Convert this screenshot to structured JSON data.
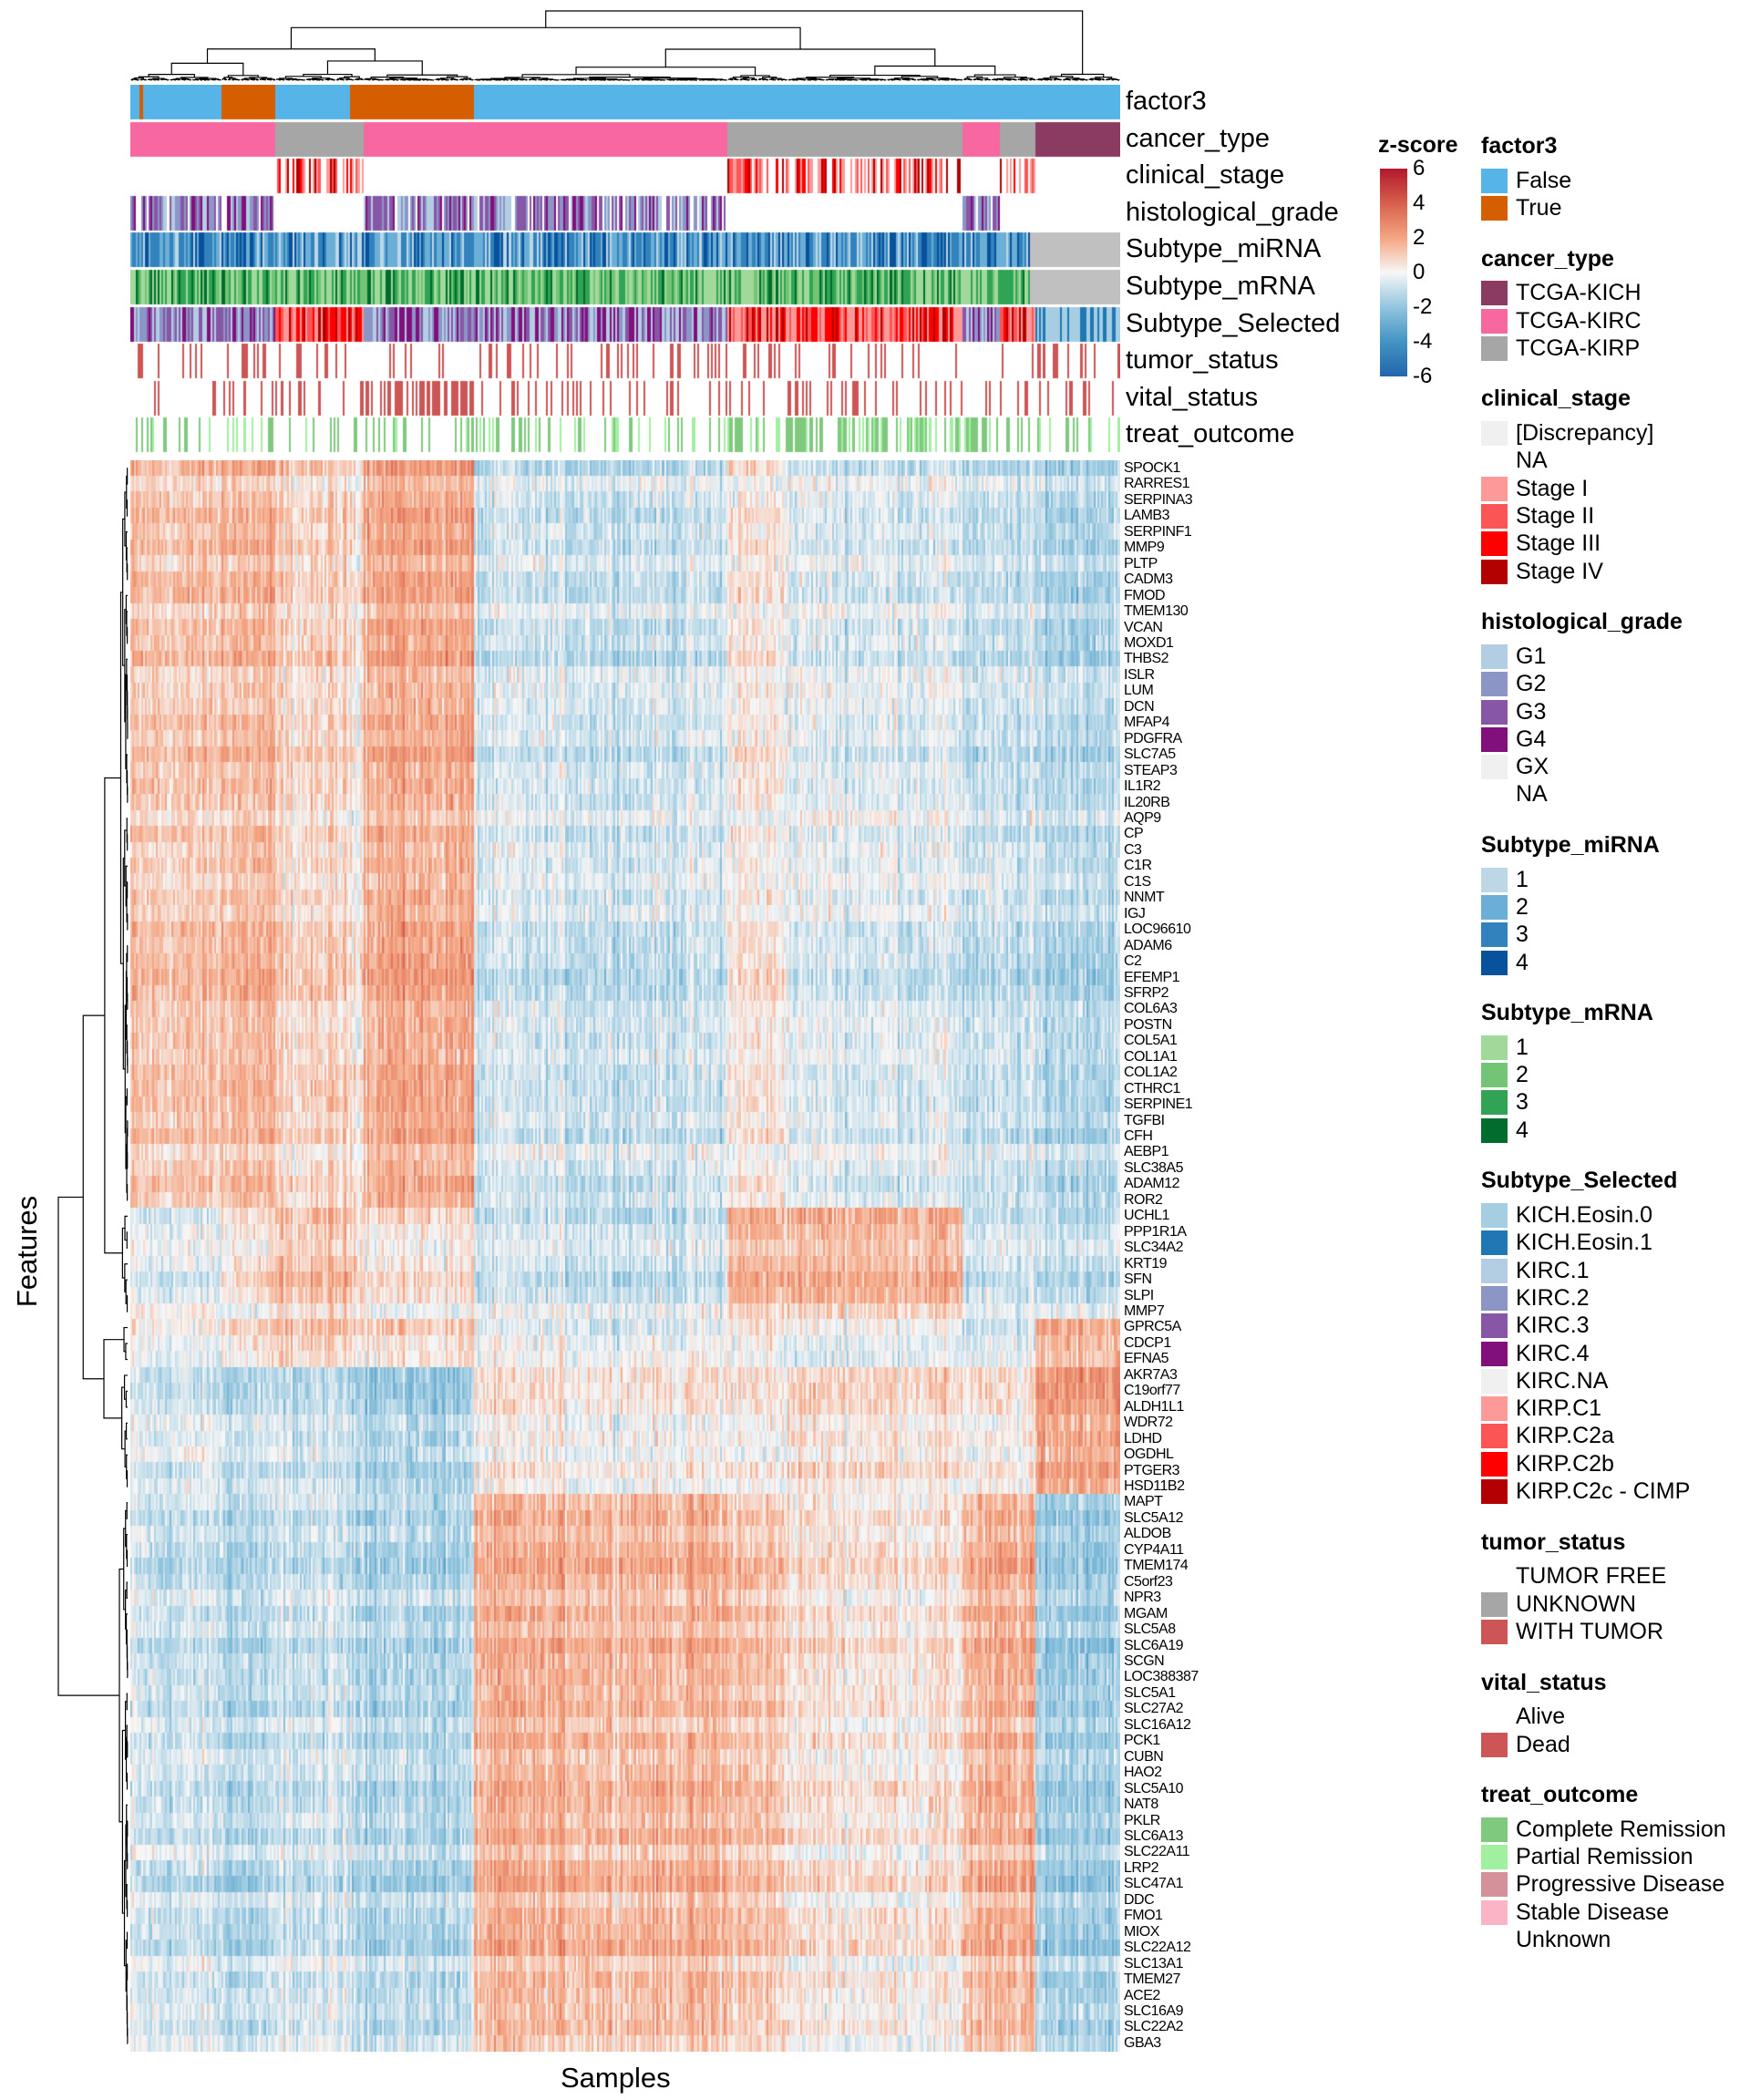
{
  "chart_data": {
    "type": "heatmap",
    "title": "",
    "xlabel": "Samples",
    "ylabel": "Features",
    "color_scale": {
      "title": "z-score",
      "range": [
        -6,
        6
      ],
      "ticks": [
        "6",
        "4",
        "2",
        "0",
        "-2",
        "-4",
        "-6"
      ],
      "colors": [
        "#2166ac",
        "#4393c3",
        "#92c5de",
        "#f7f7f7",
        "#f4a582",
        "#d6604d",
        "#b2182b"
      ]
    },
    "row_dendrogram": true,
    "column_dendrogram": true,
    "annotation_tracks": [
      "factor3",
      "cancer_type",
      "clinical_stage",
      "histological_grade",
      "Subtype_miRNA",
      "Subtype_mRNA",
      "Subtype_Selected",
      "tumor_status",
      "vital_status",
      "treat_outcome"
    ],
    "rows": [
      "SPOCK1",
      "RARRES1",
      "SERPINA3",
      "LAMB3",
      "SERPINF1",
      "MMP9",
      "PLTP",
      "CADM3",
      "FMOD",
      "TMEM130",
      "VCAN",
      "MOXD1",
      "THBS2",
      "ISLR",
      "LUM",
      "DCN",
      "MFAP4",
      "PDGFRA",
      "SLC7A5",
      "STEAP3",
      "IL1R2",
      "IL20RB",
      "AQP9",
      "CP",
      "C3",
      "C1R",
      "C1S",
      "NNMT",
      "IGJ",
      "LOC96610",
      "ADAM6",
      "C2",
      "EFEMP1",
      "SFRP2",
      "COL6A3",
      "POSTN",
      "COL5A1",
      "COL1A1",
      "COL1A2",
      "CTHRC1",
      "SERPINE1",
      "TGFBI",
      "CFH",
      "AEBP1",
      "SLC38A5",
      "ADAM12",
      "ROR2",
      "UCHL1",
      "PPP1R1A",
      "SLC34A2",
      "KRT19",
      "SFN",
      "SLPI",
      "MMP7",
      "GPRC5A",
      "CDCP1",
      "EFNA5",
      "AKR7A3",
      "C19orf77",
      "ALDH1L1",
      "WDR72",
      "LDHD",
      "OGDHL",
      "PTGER3",
      "HSD11B2",
      "MAPT",
      "SLC5A12",
      "ALDOB",
      "CYP4A11",
      "TMEM174",
      "C5orf23",
      "NPR3",
      "MGAM",
      "SLC5A8",
      "SLC6A19",
      "SCGN",
      "LOC388387",
      "SLC5A1",
      "SLC27A2",
      "SLC16A12",
      "PCK1",
      "CUBN",
      "HAO2",
      "SLC5A10",
      "NAT8",
      "PKLR",
      "SLC6A13",
      "SLC22A11",
      "LRP2",
      "SLC47A1",
      "DDC",
      "FMO1",
      "MIOX",
      "SLC22A12",
      "SLC13A1",
      "TMEM27",
      "ACE2",
      "SLC16A9",
      "SLC22A2",
      "GBA3"
    ],
    "row_clusters": [
      {
        "genes_from": "SPOCK1",
        "genes_to": "ROR2",
        "count": 47
      },
      {
        "genes_from": "UCHL1",
        "genes_to": "MMP7",
        "count": 7
      },
      {
        "genes_from": "GPRC5A",
        "genes_to": "EFNA5",
        "count": 3
      },
      {
        "genes_from": "AKR7A3",
        "genes_to": "HSD11B2",
        "count": 8
      },
      {
        "genes_from": "MAPT",
        "genes_to": "GBA3",
        "count": 35
      }
    ],
    "column_clusters_mean_zscore": [
      [
        1.5,
        2.0,
        1.0,
        2.5,
        -1.0,
        0.5,
        -0.6,
        -1.3,
        -1.6
      ],
      [
        -0.5,
        0.5,
        1.5,
        0.5,
        -1.0,
        2.0,
        2.0,
        -1.0,
        -1.2
      ],
      [
        0.0,
        1.0,
        1.5,
        1.2,
        -0.5,
        0.5,
        0.0,
        -1.0,
        2.5
      ],
      [
        -1.0,
        -1.5,
        -1.5,
        -2.2,
        0.5,
        0.5,
        1.0,
        0.5,
        3.0
      ],
      [
        -1.0,
        -1.6,
        -1.0,
        -1.6,
        2.0,
        1.5,
        0.5,
        2.0,
        -2.0
      ]
    ]
  },
  "legends": [
    {
      "title": "factor3",
      "items": [
        {
          "label": "False",
          "color": "#56b4e9"
        },
        {
          "label": "True",
          "color": "#d55e00"
        }
      ]
    },
    {
      "title": "cancer_type",
      "items": [
        {
          "label": "TCGA-KICH",
          "color": "#8b3a62"
        },
        {
          "label": "TCGA-KIRC",
          "color": "#f768a1"
        },
        {
          "label": "TCGA-KIRP",
          "color": "#a6a6a6"
        }
      ]
    },
    {
      "title": "clinical_stage",
      "items": [
        {
          "label": "[Discrepancy]",
          "color": "#f0f0f0"
        },
        {
          "label": "NA",
          "color": "#ffffff"
        },
        {
          "label": "Stage I",
          "color": "#fb9a99"
        },
        {
          "label": "Stage II",
          "color": "#fb5555"
        },
        {
          "label": "Stage III",
          "color": "#ff0000"
        },
        {
          "label": "Stage IV",
          "color": "#b30000"
        }
      ]
    },
    {
      "title": "histological_grade",
      "items": [
        {
          "label": "G1",
          "color": "#b3cde3"
        },
        {
          "label": "G2",
          "color": "#8c96c6"
        },
        {
          "label": "G3",
          "color": "#8856a7"
        },
        {
          "label": "G4",
          "color": "#810f7c"
        },
        {
          "label": "GX",
          "color": "#f0f0f0"
        },
        {
          "label": "NA",
          "color": "#ffffff"
        }
      ]
    },
    {
      "title": "Subtype_miRNA",
      "items": [
        {
          "label": "1",
          "color": "#bdd7e7"
        },
        {
          "label": "2",
          "color": "#6baed6"
        },
        {
          "label": "3",
          "color": "#3182bd"
        },
        {
          "label": "4",
          "color": "#08519c"
        }
      ]
    },
    {
      "title": "Subtype_mRNA",
      "items": [
        {
          "label": "1",
          "color": "#a1d99b"
        },
        {
          "label": "2",
          "color": "#74c476"
        },
        {
          "label": "3",
          "color": "#31a354"
        },
        {
          "label": "4",
          "color": "#006d2c"
        }
      ]
    },
    {
      "title": "Subtype_Selected",
      "items": [
        {
          "label": "KICH.Eosin.0",
          "color": "#a6cee3"
        },
        {
          "label": "KICH.Eosin.1",
          "color": "#1f78b4"
        },
        {
          "label": "KIRC.1",
          "color": "#b3cde3"
        },
        {
          "label": "KIRC.2",
          "color": "#8c96c6"
        },
        {
          "label": "KIRC.3",
          "color": "#8856a7"
        },
        {
          "label": "KIRC.4",
          "color": "#810f7c"
        },
        {
          "label": "KIRC.NA",
          "color": "#f0f0f0"
        },
        {
          "label": "KIRP.C1",
          "color": "#fb9a99"
        },
        {
          "label": "KIRP.C2a",
          "color": "#fb5555"
        },
        {
          "label": "KIRP.C2b",
          "color": "#ff0000"
        },
        {
          "label": "KIRP.C2c - CIMP",
          "color": "#b30000"
        }
      ]
    },
    {
      "title": "tumor_status",
      "items": [
        {
          "label": "TUMOR FREE",
          "color": "#ffffff"
        },
        {
          "label": "UNKNOWN",
          "color": "#a6a6a6"
        },
        {
          "label": "WITH TUMOR",
          "color": "#cd5555"
        }
      ]
    },
    {
      "title": "vital_status",
      "items": [
        {
          "label": "Alive",
          "color": "#ffffff"
        },
        {
          "label": "Dead",
          "color": "#cd5555"
        }
      ]
    },
    {
      "title": "treat_outcome",
      "items": [
        {
          "label": "Complete Remission",
          "color": "#7fc97f"
        },
        {
          "label": "Partial Remission",
          "color": "#a0f0a0"
        },
        {
          "label": "Progressive Disease",
          "color": "#d4919a"
        },
        {
          "label": "Stable Disease",
          "color": "#fbb4c4"
        },
        {
          "label": "Unknown",
          "color": "#ffffff"
        }
      ]
    }
  ]
}
